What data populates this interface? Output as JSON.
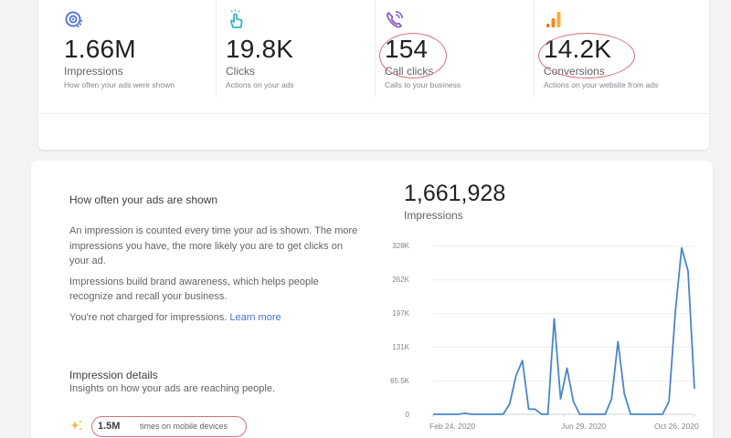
{
  "summary_metrics": [
    {
      "icon": "eye-icon",
      "color": "#5b7bd5",
      "value": "1.66M",
      "label": "Impressions",
      "description": "How often your ads were shown",
      "highlighted": false
    },
    {
      "icon": "tap-hand-icon",
      "color": "#35b5c6",
      "value": "19.8K",
      "label": "Clicks",
      "description": "Actions on your ads",
      "highlighted": false
    },
    {
      "icon": "phone-ringing-icon",
      "color": "#8e5fc4",
      "value": "154",
      "label": "Call clicks",
      "description": "Calls to your business",
      "highlighted": true
    },
    {
      "icon": "bar-signal-icon",
      "color": "#f0a033",
      "value": "14.2K",
      "label": "Conversions",
      "description": "Actions on your website from ads",
      "highlighted": true
    }
  ],
  "info": {
    "title": "How often your ads are shown",
    "paragraph1": "An impression is counted every time your ad is shown. The more impressions you have, the more likely you are to get clicks on your ad.",
    "paragraph2": "Impressions build brand awareness, which helps people recognize and recall your business.",
    "paragraph3": "You're not charged for impressions.",
    "learn_more": "Learn more"
  },
  "details": {
    "title": "Impression details",
    "subtitle": "Insights on how your ads are reaching people.",
    "items": [
      {
        "icon": "sparkle-icon",
        "value": "1.5M",
        "text": "times on mobile devices"
      }
    ]
  },
  "chart_header": {
    "total": "1,661,928",
    "label": "Impressions"
  },
  "colors": {
    "line": "#4a86c8",
    "highlight_circle": "#d9707f",
    "link": "#4a6fd6"
  },
  "chart_data": {
    "type": "line",
    "title": "Impressions",
    "xlabel": "",
    "ylabel": "Impressions",
    "ylim": [
      0,
      328000
    ],
    "yticks": [
      "0",
      "65.5K",
      "131K",
      "197K",
      "262K",
      "328K"
    ],
    "xticks": [
      "Feb 24, 2020",
      "Jun 29, 2020",
      "Oct 26, 2020"
    ],
    "grid": true,
    "series": [
      {
        "name": "Impressions",
        "values": [
          0,
          0,
          0,
          0,
          0,
          2000,
          0,
          0,
          0,
          0,
          0,
          0,
          20000,
          75000,
          105000,
          10000,
          10000,
          0,
          0,
          187000,
          30000,
          90000,
          25000,
          0,
          0,
          0,
          0,
          0,
          30000,
          142000,
          40000,
          0,
          0,
          0,
          0,
          0,
          0,
          25000,
          200000,
          325000,
          280000,
          50000
        ]
      }
    ]
  }
}
